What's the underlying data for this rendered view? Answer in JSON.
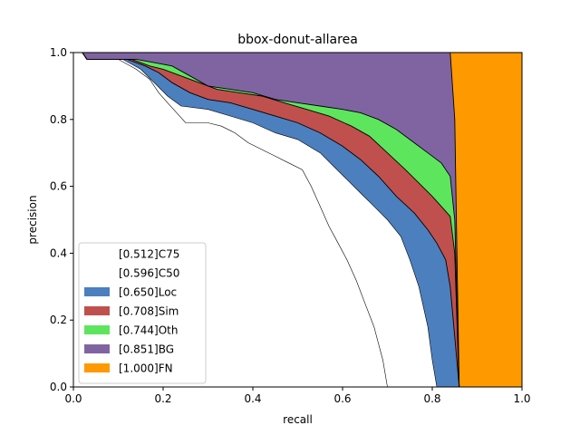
{
  "chart_data": {
    "type": "area",
    "title": "bbox-donut-allarea",
    "xlabel": "recall",
    "ylabel": "precision",
    "xlim": [
      0,
      1
    ],
    "ylim": [
      0,
      1
    ],
    "xticks": [
      "0.0",
      "0.2",
      "0.4",
      "0.6",
      "0.8",
      "1.0"
    ],
    "yticks": [
      "0.0",
      "0.2",
      "0.4",
      "0.6",
      "0.8",
      "1.0"
    ],
    "grid": false,
    "legend_position": "lower-left",
    "series": [
      {
        "name": "[0.512]C75",
        "color": "#ffffff",
        "points": [
          [
            0.0,
            1.0
          ],
          [
            0.02,
            1.0
          ],
          [
            0.03,
            0.98
          ],
          [
            0.1,
            0.98
          ],
          [
            0.14,
            0.95
          ],
          [
            0.17,
            0.92
          ],
          [
            0.19,
            0.88
          ],
          [
            0.21,
            0.85
          ],
          [
            0.23,
            0.82
          ],
          [
            0.25,
            0.79
          ],
          [
            0.3,
            0.79
          ],
          [
            0.33,
            0.78
          ],
          [
            0.36,
            0.76
          ],
          [
            0.39,
            0.73
          ],
          [
            0.42,
            0.71
          ],
          [
            0.45,
            0.69
          ],
          [
            0.48,
            0.67
          ],
          [
            0.51,
            0.65
          ],
          [
            0.53,
            0.6
          ],
          [
            0.55,
            0.54
          ],
          [
            0.57,
            0.48
          ],
          [
            0.59,
            0.43
          ],
          [
            0.61,
            0.38
          ],
          [
            0.63,
            0.32
          ],
          [
            0.65,
            0.25
          ],
          [
            0.67,
            0.18
          ],
          [
            0.69,
            0.08
          ],
          [
            0.7,
            0.0
          ]
        ]
      },
      {
        "name": "[0.596]C50",
        "color": "#ffffff",
        "points": [
          [
            0.0,
            1.0
          ],
          [
            0.02,
            1.0
          ],
          [
            0.03,
            0.98
          ],
          [
            0.11,
            0.98
          ],
          [
            0.15,
            0.95
          ],
          [
            0.18,
            0.91
          ],
          [
            0.21,
            0.87
          ],
          [
            0.24,
            0.84
          ],
          [
            0.3,
            0.83
          ],
          [
            0.35,
            0.81
          ],
          [
            0.4,
            0.79
          ],
          [
            0.45,
            0.76
          ],
          [
            0.5,
            0.74
          ],
          [
            0.55,
            0.7
          ],
          [
            0.58,
            0.66
          ],
          [
            0.61,
            0.62
          ],
          [
            0.64,
            0.58
          ],
          [
            0.67,
            0.54
          ],
          [
            0.7,
            0.5
          ],
          [
            0.73,
            0.45
          ],
          [
            0.75,
            0.38
          ],
          [
            0.77,
            0.3
          ],
          [
            0.79,
            0.18
          ],
          [
            0.8,
            0.08
          ],
          [
            0.81,
            0.0
          ]
        ]
      },
      {
        "name": "[0.650]Loc",
        "color": "#4c7fbd",
        "points": [
          [
            0.0,
            1.0
          ],
          [
            0.02,
            1.0
          ],
          [
            0.03,
            0.98
          ],
          [
            0.12,
            0.98
          ],
          [
            0.16,
            0.96
          ],
          [
            0.19,
            0.94
          ],
          [
            0.22,
            0.91
          ],
          [
            0.26,
            0.88
          ],
          [
            0.3,
            0.86
          ],
          [
            0.35,
            0.85
          ],
          [
            0.4,
            0.83
          ],
          [
            0.45,
            0.81
          ],
          [
            0.5,
            0.79
          ],
          [
            0.55,
            0.76
          ],
          [
            0.6,
            0.72
          ],
          [
            0.64,
            0.68
          ],
          [
            0.68,
            0.63
          ],
          [
            0.72,
            0.57
          ],
          [
            0.76,
            0.52
          ],
          [
            0.79,
            0.47
          ],
          [
            0.81,
            0.43
          ],
          [
            0.83,
            0.38
          ],
          [
            0.84,
            0.3
          ],
          [
            0.85,
            0.15
          ],
          [
            0.86,
            0.0
          ]
        ]
      },
      {
        "name": "[0.708]Sim",
        "color": "#c0504d",
        "points": [
          [
            0.0,
            1.0
          ],
          [
            0.02,
            1.0
          ],
          [
            0.03,
            0.98
          ],
          [
            0.13,
            0.98
          ],
          [
            0.17,
            0.96
          ],
          [
            0.2,
            0.95
          ],
          [
            0.24,
            0.93
          ],
          [
            0.28,
            0.91
          ],
          [
            0.32,
            0.89
          ],
          [
            0.37,
            0.88
          ],
          [
            0.42,
            0.87
          ],
          [
            0.47,
            0.85
          ],
          [
            0.52,
            0.83
          ],
          [
            0.57,
            0.81
          ],
          [
            0.62,
            0.78
          ],
          [
            0.66,
            0.75
          ],
          [
            0.7,
            0.7
          ],
          [
            0.74,
            0.65
          ],
          [
            0.77,
            0.61
          ],
          [
            0.8,
            0.57
          ],
          [
            0.82,
            0.54
          ],
          [
            0.84,
            0.51
          ],
          [
            0.85,
            0.4
          ],
          [
            0.855,
            0.2
          ],
          [
            0.86,
            0.0
          ]
        ]
      },
      {
        "name": "[0.744]Oth",
        "color": "#5ee55e",
        "points": [
          [
            0.0,
            1.0
          ],
          [
            0.02,
            1.0
          ],
          [
            0.03,
            0.98
          ],
          [
            0.14,
            0.98
          ],
          [
            0.18,
            0.97
          ],
          [
            0.22,
            0.96
          ],
          [
            0.26,
            0.93
          ],
          [
            0.3,
            0.9
          ],
          [
            0.35,
            0.89
          ],
          [
            0.4,
            0.88
          ],
          [
            0.45,
            0.86
          ],
          [
            0.5,
            0.85
          ],
          [
            0.55,
            0.84
          ],
          [
            0.6,
            0.83
          ],
          [
            0.64,
            0.82
          ],
          [
            0.68,
            0.8
          ],
          [
            0.72,
            0.77
          ],
          [
            0.76,
            0.73
          ],
          [
            0.79,
            0.7
          ],
          [
            0.82,
            0.67
          ],
          [
            0.84,
            0.63
          ],
          [
            0.85,
            0.5
          ],
          [
            0.855,
            0.25
          ],
          [
            0.86,
            0.0
          ]
        ]
      },
      {
        "name": "[0.851]BG",
        "color": "#8064a2",
        "points": [
          [
            0.0,
            1.0
          ],
          [
            0.84,
            1.0
          ],
          [
            0.85,
            0.8
          ],
          [
            0.855,
            0.4
          ],
          [
            0.86,
            0.0
          ]
        ]
      },
      {
        "name": "[1.000]FN",
        "color": "#ff9900",
        "points": [
          [
            0.0,
            1.0
          ],
          [
            1.0,
            1.0
          ],
          [
            1.0,
            0.0
          ]
        ]
      }
    ]
  }
}
